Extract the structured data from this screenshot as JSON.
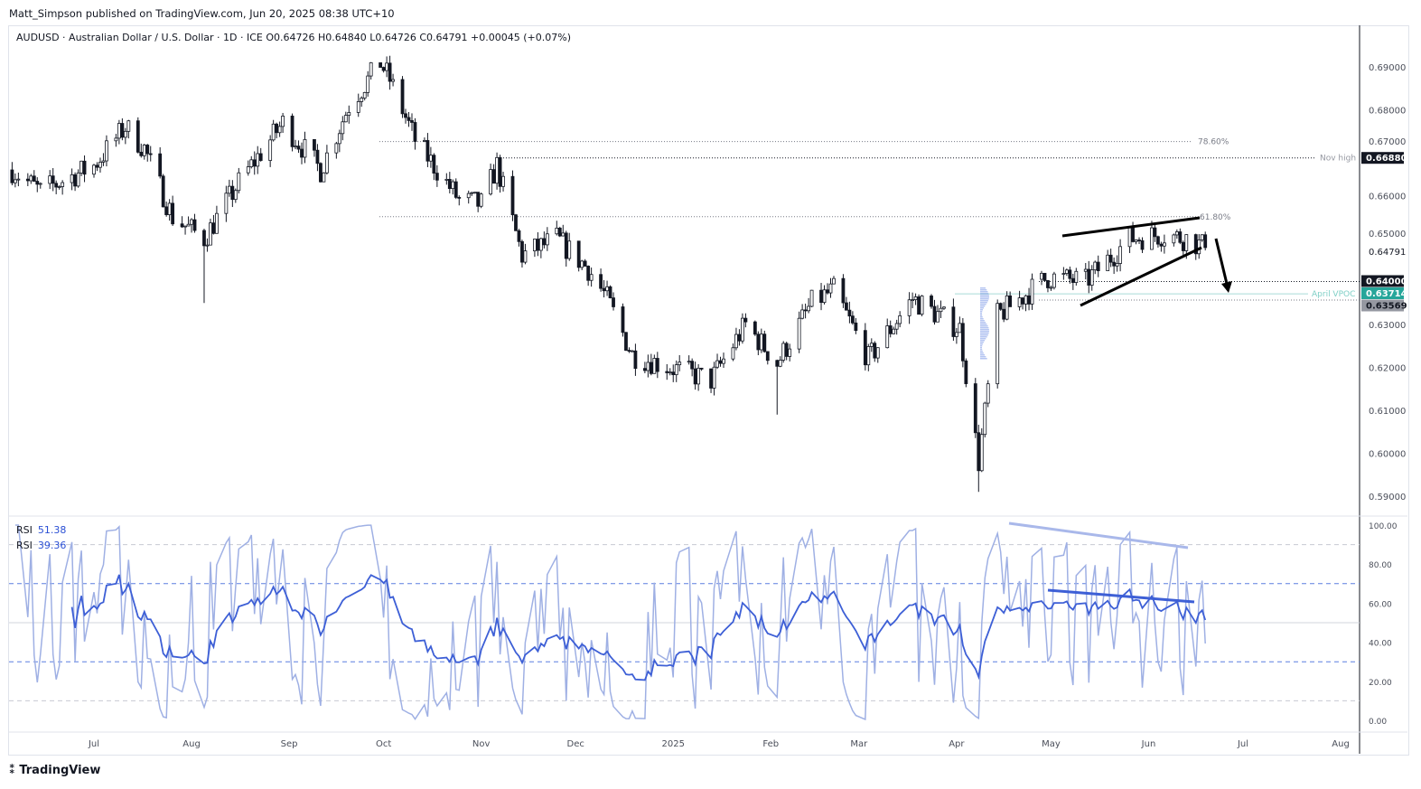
{
  "header": {
    "published": "Matt_Simpson published on TradingView.com, Jun 20, 2025 08:38 UTC+10",
    "legend": "AUDUSD · Australian Dollar / U.S. Dollar · 1D · ICE  O0.64726  H0.64840  L0.64726  C0.64791  +0.00045 (+0.07%)"
  },
  "footer": {
    "brand": "TradingView"
  },
  "rsi_legend": [
    {
      "label": "RSI",
      "value": "51.38"
    },
    {
      "label": "RSI",
      "value": "39.36"
    }
  ],
  "colors": {
    "bull": "#ffffff",
    "bear": "#131722",
    "rsi_main": "#3d5fd6",
    "rsi_fast": "#9fb0e4",
    "vpoc": "#26a69a"
  },
  "chart_data": [
    {
      "type": "candlestick",
      "symbol": "AUDUSD",
      "interval": "1D",
      "ylim": [
        0.588,
        0.697
      ],
      "y_ticks": [
        "0.69000",
        "0.68000",
        "0.67000",
        "0.66000",
        "0.65000",
        "0.63000",
        "0.62000",
        "0.61000",
        "0.60000",
        "0.59000"
      ],
      "x_ticks": [
        "Jul",
        "Aug",
        "Sep",
        "Oct",
        "Nov",
        "Dec",
        "2025",
        "Feb",
        "Mar",
        "Apr",
        "May",
        "Jun",
        "Jul",
        "Aug"
      ],
      "approx_closes": [
        {
          "date": "2024-06-05",
          "close": 0.666
        },
        {
          "date": "2024-06-14",
          "close": 0.661
        },
        {
          "date": "2024-07-01",
          "close": 0.667
        },
        {
          "date": "2024-07-11",
          "close": 0.676
        },
        {
          "date": "2024-07-17",
          "close": 0.671
        },
        {
          "date": "2024-07-26",
          "close": 0.655
        },
        {
          "date": "2024-08-05",
          "close": 0.65,
          "low": 0.635
        },
        {
          "date": "2024-08-16",
          "close": 0.663
        },
        {
          "date": "2024-08-30",
          "close": 0.677
        },
        {
          "date": "2024-09-11",
          "close": 0.666
        },
        {
          "date": "2024-09-20",
          "close": 0.681
        },
        {
          "date": "2024-09-30",
          "close": 0.691
        },
        {
          "date": "2024-10-03",
          "close": 0.687
        },
        {
          "date": "2024-10-11",
          "close": 0.673
        },
        {
          "date": "2024-10-25",
          "close": 0.659
        },
        {
          "date": "2024-11-01",
          "close": 0.658
        },
        {
          "date": "2024-11-06",
          "close": 0.667
        },
        {
          "date": "2024-11-14",
          "close": 0.646
        },
        {
          "date": "2024-11-25",
          "close": 0.65
        },
        {
          "date": "2024-12-05",
          "close": 0.643
        },
        {
          "date": "2024-12-11",
          "close": 0.636
        },
        {
          "date": "2024-12-19",
          "close": 0.623
        },
        {
          "date": "2024-12-31",
          "close": 0.62
        },
        {
          "date": "2025-01-13",
          "close": 0.617
        },
        {
          "date": "2025-01-24",
          "close": 0.63
        },
        {
          "date": "2025-02-03",
          "close": 0.621,
          "low": 0.609
        },
        {
          "date": "2025-02-14",
          "close": 0.635
        },
        {
          "date": "2025-02-21",
          "close": 0.638
        },
        {
          "date": "2025-03-04",
          "close": 0.622
        },
        {
          "date": "2025-03-18",
          "close": 0.636
        },
        {
          "date": "2025-04-02",
          "close": 0.629
        },
        {
          "date": "2025-04-08",
          "close": 0.598,
          "low": 0.591
        },
        {
          "date": "2025-04-14",
          "close": 0.632
        },
        {
          "date": "2025-04-30",
          "close": 0.641
        },
        {
          "date": "2025-05-12",
          "close": 0.64
        },
        {
          "date": "2025-05-26",
          "close": 0.65
        },
        {
          "date": "2025-06-05",
          "close": 0.651
        },
        {
          "date": "2025-06-13",
          "close": 0.65
        },
        {
          "date": "2025-06-19",
          "close": 0.6479
        }
      ],
      "levels": [
        {
          "label": "78.60%",
          "price": 0.6726
        },
        {
          "label": "61.80%",
          "price": 0.6551
        },
        {
          "label": "Nov high",
          "price": 0.6688,
          "tag": "0.66880"
        },
        {
          "label": "",
          "price": 0.64,
          "tag": "0.64000"
        },
        {
          "label": "April VPOC",
          "price": 0.63714,
          "tag": "0.63714"
        },
        {
          "label": "",
          "price": 0.63569,
          "tag": "0.63569"
        }
      ],
      "last_price": "0.64791"
    },
    {
      "type": "line",
      "title": "RSI",
      "ylim": [
        0,
        100
      ],
      "y_ticks": [
        "100.00",
        "80.00",
        "60.00",
        "40.00",
        "20.00",
        "0.00"
      ],
      "bands": [
        90,
        70,
        50,
        30,
        10
      ],
      "series": [
        {
          "name": "RSI",
          "last": 51.38
        },
        {
          "name": "RSI",
          "last": 39.36
        }
      ]
    }
  ]
}
